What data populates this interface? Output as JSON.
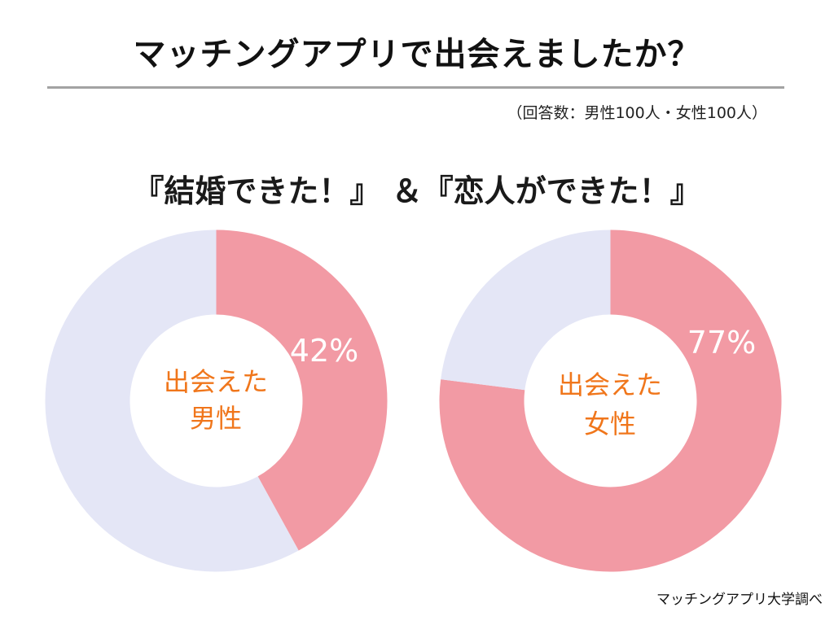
{
  "title": "マッチングアプリで出会えましたか？",
  "note": "（回答数：男性100人・女性100人）",
  "subtitle": "『結婚できた！』 ＆『恋人ができた！』",
  "source": "マッチングアプリ大学調べ",
  "colors": {
    "met": "#f29aa4",
    "not_met": "#e4e6f6",
    "center_text": "#f0761b",
    "rule": "#a3a3a3"
  },
  "chart_data": [
    {
      "type": "pie",
      "center_label_line1": "出会えた",
      "center_label_line2": "男性",
      "value_label": "42%",
      "slices": [
        {
          "value": 42
        },
        {
          "value": 58
        }
      ]
    },
    {
      "type": "pie",
      "center_label_line1": "出会えた",
      "center_label_line2": "女性",
      "value_label": "77%",
      "slices": [
        {
          "value": 77
        },
        {
          "value": 23
        }
      ]
    }
  ]
}
